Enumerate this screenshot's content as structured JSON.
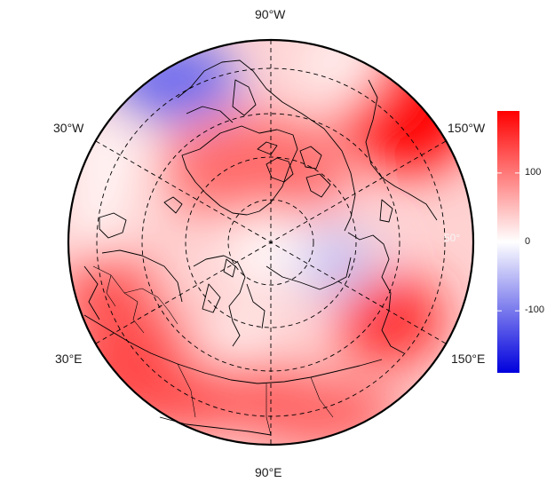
{
  "map": {
    "projection": "north-polar-stereographic",
    "longitude_labels": {
      "top": "90°W",
      "bottom": "90°E",
      "upper_left": "30°W",
      "lower_left": "30°E",
      "upper_right": "150°W",
      "lower_right": "150°E"
    },
    "latitude_label": "50°",
    "graticule_style": "dashed",
    "colors": {
      "negative": "#0000dd",
      "neutral": "#ffffff",
      "positive": "#ff0000",
      "coast": "#000000"
    }
  },
  "colorbar": {
    "range": [
      -190,
      190
    ],
    "ticks": [
      {
        "value": 100,
        "label": "100"
      },
      {
        "value": 0,
        "label": "0"
      },
      {
        "value": -100,
        "label": "-100"
      }
    ]
  }
}
